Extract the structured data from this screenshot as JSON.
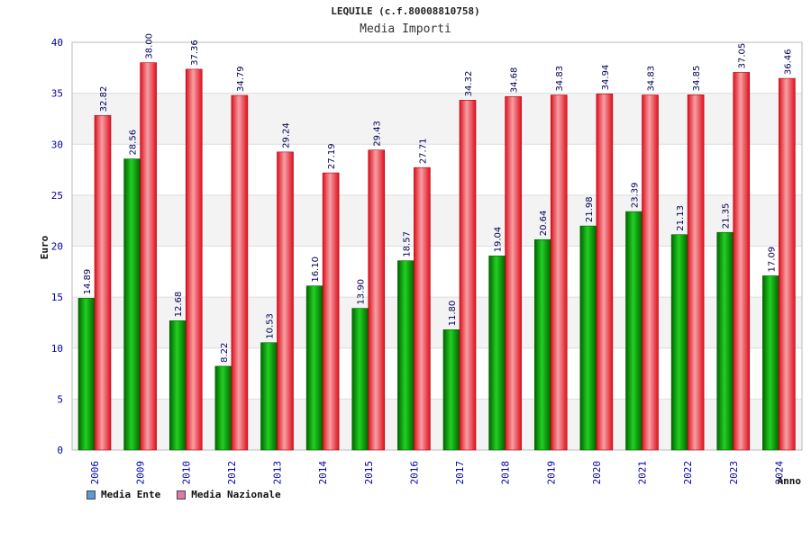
{
  "title": "LEQUILE (c.f.80008810758)",
  "subtitle": "Media Importi",
  "colors": {
    "ente_bar": "#00b000",
    "ente_legend": "#5b9bd5",
    "nazionale_bar": "#e8131f",
    "nazionale_legend": "#d97aa8",
    "axis_text": "#0000aa",
    "label_text": "#000055"
  },
  "legend": {
    "ente": "Media Ente",
    "nazionale": "Media Nazionale"
  },
  "chart_data": {
    "type": "bar",
    "title": "LEQUILE (c.f.80008810758)",
    "subtitle": "Media Importi",
    "xlabel": "Anno",
    "ylabel": "Euro",
    "ylim": [
      0,
      40
    ],
    "yticks": [
      0,
      5,
      10,
      15,
      20,
      25,
      30,
      35,
      40
    ],
    "grid": true,
    "legend_position": "bottom-left",
    "categories": [
      "2006",
      "2009",
      "2010",
      "2012",
      "2013",
      "2014",
      "2015",
      "2016",
      "2017",
      "2018",
      "2019",
      "2020",
      "2021",
      "2022",
      "2023",
      "2024"
    ],
    "series": [
      {
        "name": "Media Ente",
        "values": [
          14.89,
          28.56,
          12.68,
          8.22,
          10.53,
          16.1,
          13.9,
          18.57,
          11.8,
          19.04,
          20.64,
          21.98,
          23.39,
          21.13,
          21.35,
          17.09
        ],
        "labels": [
          "14.89",
          "28.56",
          "12.68",
          "8.22",
          "10.53",
          "16.10",
          "13.90",
          "18.57",
          "11.80",
          "19.04",
          "20.64",
          "21.98",
          "23.39",
          "21.13",
          "21.35",
          "17.09"
        ]
      },
      {
        "name": "Media Nazionale",
        "values": [
          32.82,
          38.0,
          37.36,
          34.79,
          29.24,
          27.19,
          29.43,
          27.71,
          34.32,
          34.68,
          34.83,
          34.94,
          34.83,
          34.85,
          37.05,
          36.46
        ],
        "labels": [
          "32.82",
          "38.00",
          "37.36",
          "34.79",
          "29.24",
          "27.19",
          "29.43",
          "27.71",
          "34.32",
          "34.68",
          "34.83",
          "34.94",
          "34.83",
          "34.85",
          "37.05",
          "36.46"
        ]
      }
    ]
  }
}
